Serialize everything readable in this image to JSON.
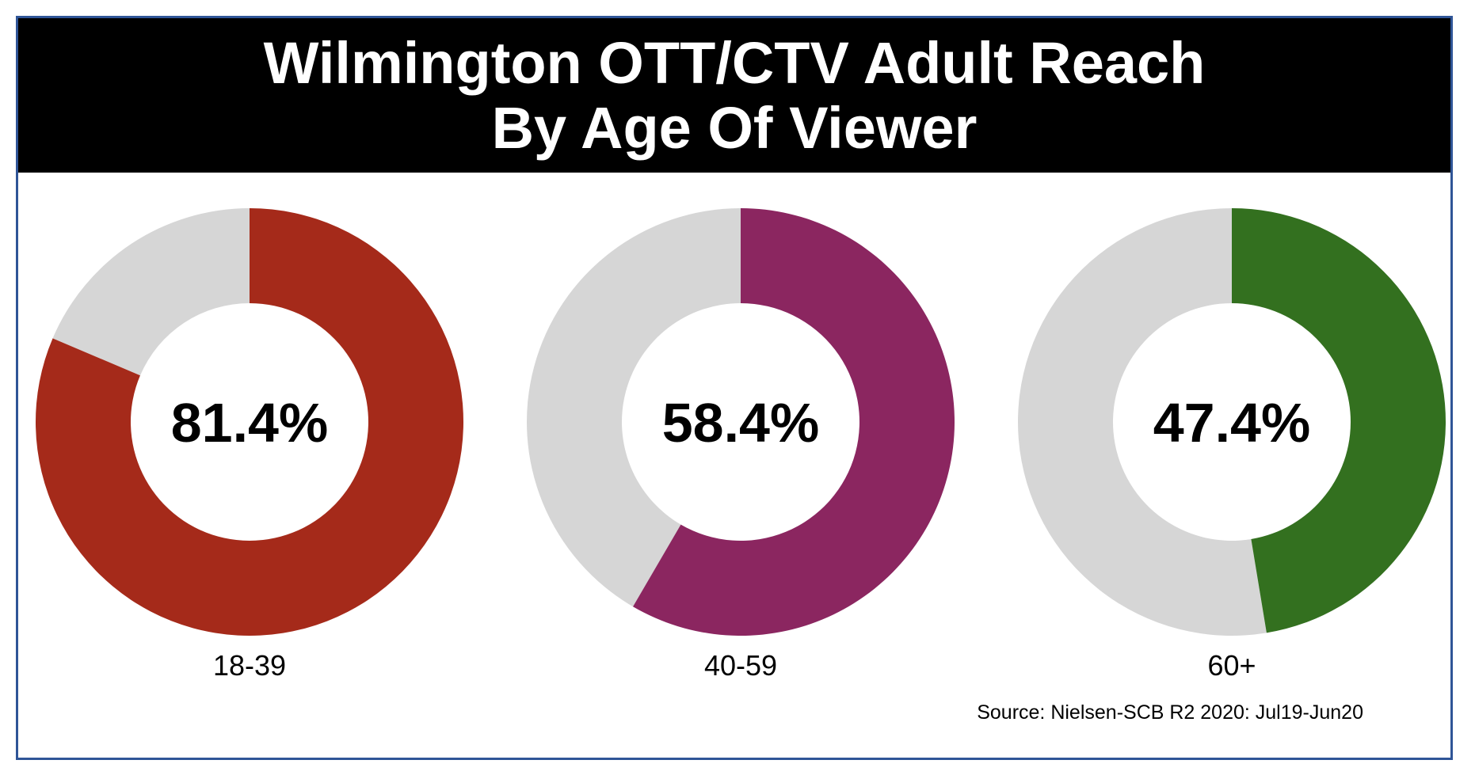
{
  "chart_data": {
    "type": "donut",
    "title_lines": [
      "Wilmington OTT/CTV Adult Reach",
      "By Age Of Viewer"
    ],
    "categories": [
      "18-39",
      "40-59",
      "60+"
    ],
    "values": [
      81.4,
      58.4,
      47.4
    ],
    "value_labels": [
      "81.4%",
      "58.4%",
      "47.4%"
    ],
    "unit": "%",
    "max": 100,
    "colors": [
      "#a52a1a",
      "#8b2660",
      "#33701f"
    ],
    "remainder_color": "#d6d6d6",
    "source": "Source: Nielsen-SCB R2 2020: Jul19-Jun20"
  }
}
